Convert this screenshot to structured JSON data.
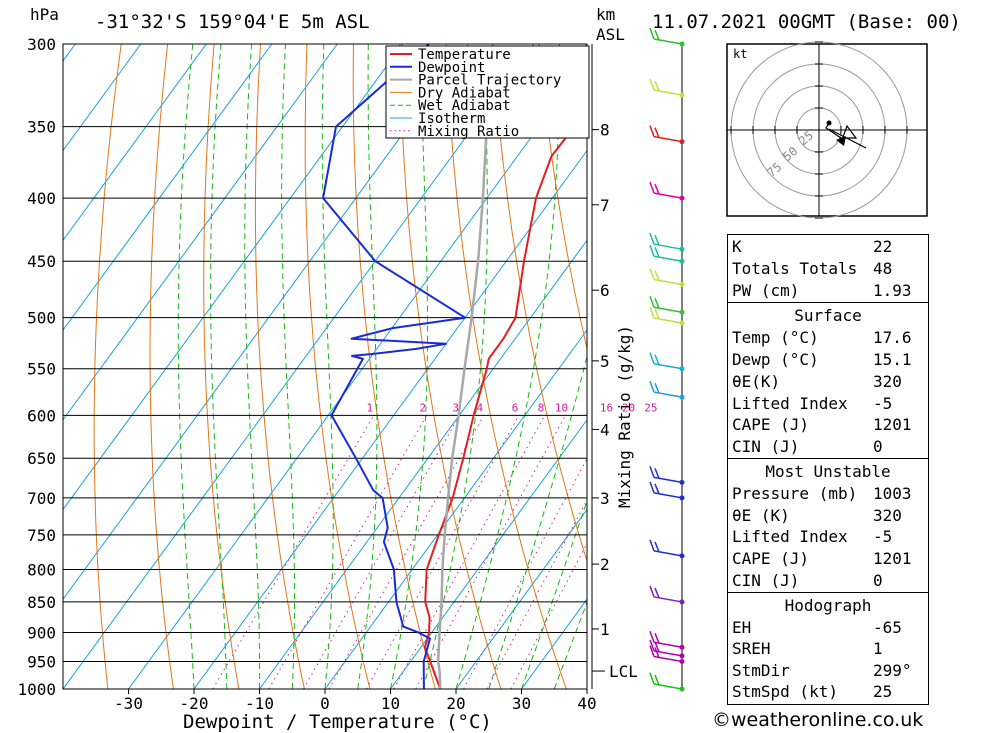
{
  "header": {
    "units_left": "hPa",
    "location": "-31°32'S 159°04'E 5m ASL",
    "units_right_1": "km",
    "units_right_2": "ASL",
    "datetime": "11.07.2021 00GMT (Base: 00)"
  },
  "colors": {
    "temperature": "#e02020",
    "dewpoint": "#1a2ad8",
    "parcel": "#a8a8a8",
    "dry_adiabat": "#e07818",
    "wet_adiabat": "#18b818",
    "isotherm": "#1aa0e0",
    "mixing_ratio": "#d0209a"
  },
  "chart_data": {
    "type": "line",
    "title": "-31°32'S 159°04'E 5m ASL",
    "xlabel": "Dewpoint / Temperature (°C)",
    "ylabel": "hPa",
    "right_axis_label": "km ASL",
    "xlim": [
      -40,
      40
    ],
    "x_ticks": [
      "-30",
      "-20",
      "-10",
      "0",
      "10",
      "20",
      "30",
      "40"
    ],
    "pressure_levels": [
      "300",
      "350",
      "400",
      "450",
      "500",
      "550",
      "600",
      "650",
      "700",
      "750",
      "800",
      "850",
      "900",
      "950",
      "1000"
    ],
    "height_ticks": [
      {
        "km": "8",
        "p": 352
      },
      {
        "km": "7",
        "p": 405
      },
      {
        "km": "6",
        "p": 475
      },
      {
        "km": "5",
        "p": 542
      },
      {
        "km": "4",
        "p": 616
      },
      {
        "km": "3",
        "p": 700
      },
      {
        "km": "2",
        "p": 792
      },
      {
        "km": "1",
        "p": 894
      }
    ],
    "lcl_label": "LCL",
    "lcl_pressure": 967,
    "mixing_ratio_label": "Mixing Ratio (g/kg)",
    "mixing_ratio_values": [
      "1",
      "2",
      "3",
      "4",
      "6",
      "8",
      "10",
      "16",
      "20",
      "25"
    ],
    "legend": [
      "Temperature",
      "Dewpoint",
      "Parcel Trajectory",
      "Dry Adiabat",
      "Wet Adiabat",
      "Isotherm",
      "Mixing Ratio"
    ],
    "series": [
      {
        "name": "Temperature",
        "points": [
          [
            1000,
            17.6
          ],
          [
            950,
            13
          ],
          [
            925,
            10.6
          ],
          [
            900,
            9.6
          ],
          [
            875,
            8
          ],
          [
            850,
            5.6
          ],
          [
            800,
            2.2
          ],
          [
            750,
            0.2
          ],
          [
            700,
            -1.8
          ],
          [
            650,
            -4.6
          ],
          [
            600,
            -7.8
          ],
          [
            550,
            -11
          ],
          [
            540,
            -11.8
          ],
          [
            520,
            -11.8
          ],
          [
            500,
            -12.3
          ],
          [
            450,
            -17.3
          ],
          [
            400,
            -22.5
          ],
          [
            370,
            -24.8
          ],
          [
            350,
            -24.6
          ],
          [
            330,
            -25.4
          ],
          [
            300,
            -28.8
          ]
        ]
      },
      {
        "name": "Dewpoint",
        "points": [
          [
            1000,
            15.1
          ],
          [
            950,
            12
          ],
          [
            910,
            10.4
          ],
          [
            900,
            8
          ],
          [
            890,
            5
          ],
          [
            850,
            1.2
          ],
          [
            800,
            -2.8
          ],
          [
            760,
            -7.4
          ],
          [
            740,
            -8.4
          ],
          [
            700,
            -12.5
          ],
          [
            690,
            -14.8
          ],
          [
            650,
            -21
          ],
          [
            600,
            -29.5
          ],
          [
            540,
            -31
          ],
          [
            537,
            -33
          ],
          [
            535,
            -30
          ],
          [
            530,
            -24
          ],
          [
            525,
            -20
          ],
          [
            520,
            -35
          ],
          [
            510,
            -30
          ],
          [
            500,
            -20
          ],
          [
            450,
            -40
          ],
          [
            400,
            -55
          ],
          [
            350,
            -61
          ],
          [
            300,
            -56
          ]
        ]
      },
      {
        "name": "Parcel Trajectory",
        "points": [
          [
            1000,
            17.6
          ],
          [
            967,
            15.5
          ],
          [
            950,
            14.2
          ],
          [
            900,
            11.2
          ],
          [
            850,
            8.1
          ],
          [
            800,
            4.6
          ],
          [
            750,
            1.1
          ],
          [
            700,
            -2.5
          ],
          [
            650,
            -6.3
          ],
          [
            600,
            -10.1
          ],
          [
            550,
            -14.4
          ],
          [
            500,
            -19
          ],
          [
            450,
            -24.3
          ],
          [
            400,
            -30.6
          ],
          [
            350,
            -38
          ],
          [
            320,
            -42.3
          ],
          [
            300,
            -46.3
          ]
        ]
      }
    ],
    "wind_barbs": [
      {
        "p": 1000,
        "color": "#18c018"
      },
      {
        "p": 950,
        "color": "#b000b0"
      },
      {
        "p": 940,
        "color": "#b000b0"
      },
      {
        "p": 925,
        "color": "#b000b0"
      },
      {
        "p": 850,
        "color": "#8020c0"
      },
      {
        "p": 780,
        "color": "#2030d0"
      },
      {
        "p": 700,
        "color": "#2030d0"
      },
      {
        "p": 680,
        "color": "#2030d0"
      },
      {
        "p": 580,
        "color": "#1aa0e0"
      },
      {
        "p": 550,
        "color": "#18b0d0"
      },
      {
        "p": 505,
        "color": "#c0e040"
      },
      {
        "p": 495,
        "color": "#30c030"
      },
      {
        "p": 470,
        "color": "#c0e040"
      },
      {
        "p": 450,
        "color": "#18c0a0"
      },
      {
        "p": 440,
        "color": "#18c0a0"
      },
      {
        "p": 400,
        "color": "#e000a0"
      },
      {
        "p": 360,
        "color": "#e02020"
      },
      {
        "p": 330,
        "color": "#c0e040"
      },
      {
        "p": 300,
        "color": "#30c030"
      }
    ]
  },
  "hodograph": {
    "unit": "kt",
    "ring_labels": [
      "25",
      "50",
      "75"
    ]
  },
  "indices": {
    "rows": [
      {
        "label": "K",
        "value": "22"
      },
      {
        "label": "Totals Totals",
        "value": "48"
      },
      {
        "label": "PW (cm)",
        "value": "1.93"
      }
    ]
  },
  "surface": {
    "title": "Surface",
    "rows": [
      {
        "label": "Temp (°C)",
        "value": "17.6"
      },
      {
        "label": "Dewp (°C)",
        "value": "15.1"
      },
      {
        "label": "θE(K)",
        "value": "320"
      },
      {
        "label": "Lifted Index",
        "value": "-5"
      },
      {
        "label": "CAPE (J)",
        "value": "1201"
      },
      {
        "label": "CIN (J)",
        "value": "0"
      }
    ]
  },
  "most_unstable": {
    "title": "Most Unstable",
    "rows": [
      {
        "label": "Pressure (mb)",
        "value": "1003"
      },
      {
        "label": "θE (K)",
        "value": "320"
      },
      {
        "label": "Lifted Index",
        "value": "-5"
      },
      {
        "label": "CAPE (J)",
        "value": "1201"
      },
      {
        "label": "CIN (J)",
        "value": "0"
      }
    ]
  },
  "hodograph_stats": {
    "title": "Hodograph",
    "rows": [
      {
        "label": "EH",
        "value": "-65"
      },
      {
        "label": "SREH",
        "value": "1"
      },
      {
        "label": "StmDir",
        "value": "299°"
      },
      {
        "label": "StmSpd (kt)",
        "value": "25"
      }
    ]
  },
  "footer": {
    "credit": "©weatheronline.co.uk"
  }
}
